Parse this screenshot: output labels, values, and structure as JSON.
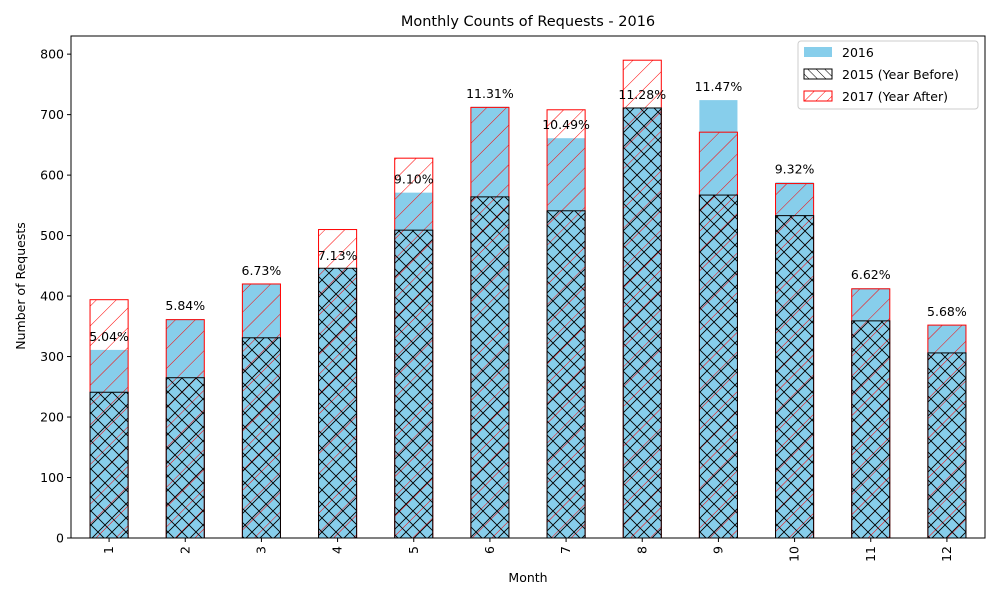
{
  "chart_data": {
    "type": "bar",
    "title": "Monthly Counts of Requests - 2016",
    "xlabel": "Month",
    "ylabel": "Number of Requests",
    "categories": [
      "1",
      "2",
      "3",
      "4",
      "5",
      "6",
      "7",
      "8",
      "9",
      "10",
      "11",
      "12"
    ],
    "ylim": [
      0,
      830
    ],
    "yticks": [
      0,
      100,
      200,
      300,
      400,
      500,
      600,
      700,
      800
    ],
    "legend_position": "top-right",
    "series": [
      {
        "name": "2016",
        "style": "solid",
        "color": "#87ceeb",
        "values": [
          311,
          362,
          420,
          445,
          571,
          713,
          661,
          711,
          724,
          588,
          413,
          352
        ]
      },
      {
        "name": "2015 (Year Before)",
        "style": "hatch-cross",
        "color": "#000000",
        "values": [
          241,
          265,
          331,
          446,
          509,
          564,
          541,
          711,
          567,
          533,
          359,
          306
        ]
      },
      {
        "name": "2017 (Year After)",
        "style": "hatch-diagonal",
        "color": "#ff0000",
        "values": [
          394,
          361,
          420,
          510,
          628,
          712,
          708,
          790,
          671,
          586,
          412,
          352
        ]
      }
    ],
    "data_labels": [
      "5.04%",
      "5.84%",
      "6.73%",
      "7.13%",
      "9.10%",
      "11.31%",
      "10.49%",
      "11.28%",
      "11.47%",
      "9.32%",
      "6.62%",
      "5.68%"
    ]
  }
}
